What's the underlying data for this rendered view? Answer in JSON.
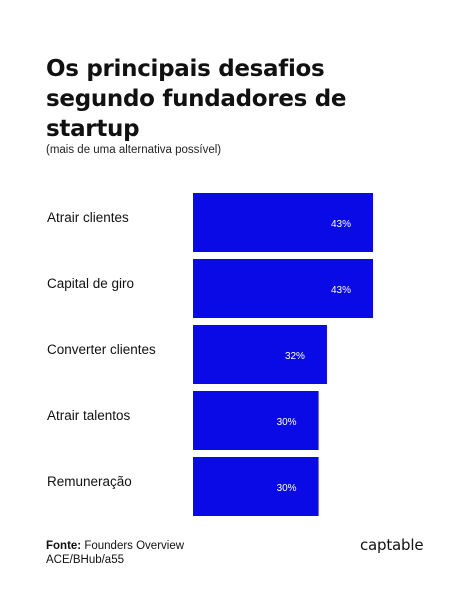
{
  "title_lines": [
    "Os principais desafios",
    "segundo fundadores de",
    "startup"
  ],
  "subtitle": "(mais de uma alternativa possível)",
  "chart_data": {
    "type": "bar",
    "orientation": "horizontal",
    "categories": [
      "Atrair clientes",
      "Capital de giro",
      "Converter clientes",
      "Atrair talentos",
      "Remuneração"
    ],
    "values": [
      43,
      43,
      32,
      30,
      30
    ],
    "data_labels": [
      "43%",
      "43%",
      "32%",
      "30%",
      "30%"
    ],
    "unit": "%",
    "title": "Os principais desafios segundo fundadores de startup",
    "subtitle": "(mais de uma alternativa possível)",
    "grid": false,
    "legend": "none",
    "bar_color": "#0a0ae6",
    "label_color": "#ffffff"
  },
  "footer": {
    "source_label": "Fonte:",
    "source_text": " Founders Overview",
    "source_line2": "ACE/BHub/a55"
  },
  "logo": {
    "text": "captable"
  }
}
